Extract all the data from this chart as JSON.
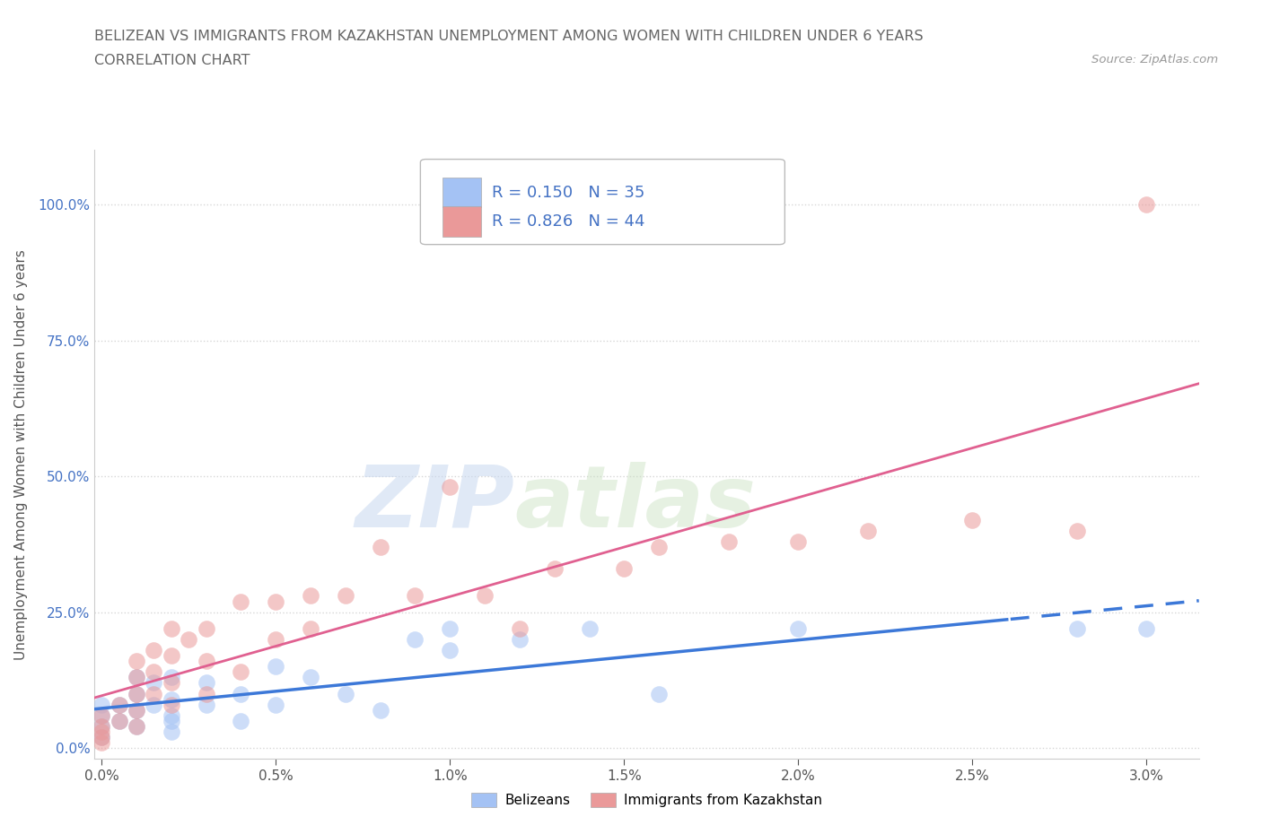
{
  "title_line1": "BELIZEAN VS IMMIGRANTS FROM KAZAKHSTAN UNEMPLOYMENT AMONG WOMEN WITH CHILDREN UNDER 6 YEARS",
  "title_line2": "CORRELATION CHART",
  "source": "Source: ZipAtlas.com",
  "xlim": [
    -0.0002,
    0.0315
  ],
  "ylim": [
    -0.02,
    1.1
  ],
  "ylabel": "Unemployment Among Women with Children Under 6 years",
  "watermark_zip": "ZIP",
  "watermark_atlas": "atlas",
  "belizean_color": "#a4c2f4",
  "kazakhstan_color": "#ea9999",
  "belizean_line_color": "#3c78d8",
  "kazakhstan_line_color": "#e06090",
  "bg_color": "#ffffff",
  "grid_color": "#cccccc",
  "title_color": "#666666",
  "source_color": "#999999",
  "legend_text_color": "#4472c4",
  "R_belizean": 0.15,
  "N_belizean": 35,
  "R_kazakhstan": 0.826,
  "N_kazakhstan": 44,
  "belizean_x": [
    0.0,
    0.0,
    0.0,
    0.0,
    0.0005,
    0.0005,
    0.001,
    0.001,
    0.001,
    0.001,
    0.0015,
    0.0015,
    0.002,
    0.002,
    0.002,
    0.002,
    0.002,
    0.003,
    0.003,
    0.004,
    0.004,
    0.005,
    0.005,
    0.006,
    0.007,
    0.008,
    0.009,
    0.01,
    0.01,
    0.012,
    0.014,
    0.016,
    0.02,
    0.028,
    0.03
  ],
  "belizean_y": [
    0.04,
    0.06,
    0.08,
    0.02,
    0.05,
    0.08,
    0.1,
    0.07,
    0.13,
    0.04,
    0.08,
    0.12,
    0.06,
    0.09,
    0.13,
    0.05,
    0.03,
    0.08,
    0.12,
    0.1,
    0.05,
    0.15,
    0.08,
    0.13,
    0.1,
    0.07,
    0.2,
    0.18,
    0.22,
    0.2,
    0.22,
    0.1,
    0.22,
    0.22,
    0.22
  ],
  "kazakhstan_x": [
    0.0,
    0.0,
    0.0,
    0.0,
    0.0,
    0.0005,
    0.0005,
    0.001,
    0.001,
    0.001,
    0.001,
    0.001,
    0.0015,
    0.0015,
    0.0015,
    0.002,
    0.002,
    0.002,
    0.002,
    0.0025,
    0.003,
    0.003,
    0.003,
    0.004,
    0.004,
    0.005,
    0.005,
    0.006,
    0.006,
    0.007,
    0.008,
    0.009,
    0.01,
    0.011,
    0.012,
    0.013,
    0.015,
    0.016,
    0.018,
    0.02,
    0.022,
    0.025,
    0.028,
    0.03
  ],
  "kazakhstan_y": [
    0.02,
    0.04,
    0.06,
    0.01,
    0.03,
    0.05,
    0.08,
    0.04,
    0.07,
    0.1,
    0.13,
    0.16,
    0.1,
    0.14,
    0.18,
    0.08,
    0.12,
    0.17,
    0.22,
    0.2,
    0.1,
    0.16,
    0.22,
    0.14,
    0.27,
    0.2,
    0.27,
    0.22,
    0.28,
    0.28,
    0.37,
    0.28,
    0.48,
    0.28,
    0.22,
    0.33,
    0.33,
    0.37,
    0.38,
    0.38,
    0.4,
    0.42,
    0.4,
    1.0
  ]
}
